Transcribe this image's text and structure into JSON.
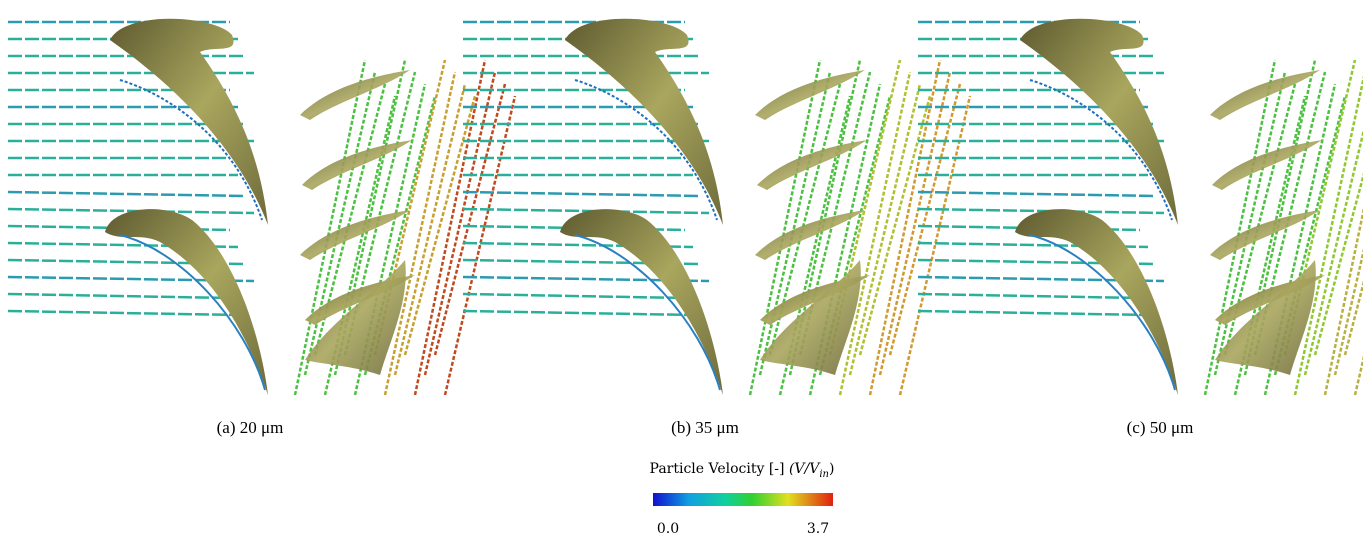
{
  "panels": [
    {
      "caption": "(a) 20 μm"
    },
    {
      "caption": "(b) 35 μm"
    },
    {
      "caption": "(c) 50 μm"
    }
  ],
  "colorbar": {
    "title": "Particle Velocity [-]",
    "formula_prefix": "(V/V",
    "formula_subscript": "in",
    "formula_suffix": ")",
    "min_label": "0.0",
    "max_label": "3.7"
  }
}
